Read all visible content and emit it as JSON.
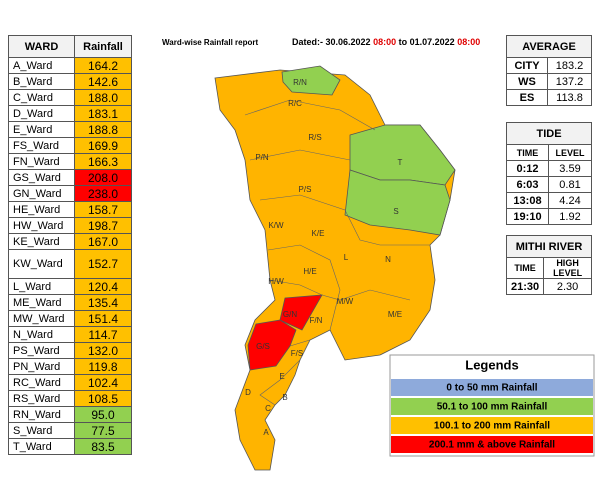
{
  "header": {
    "title": "Ward-wise Rainfall report",
    "dated_label": "Dated:-",
    "date_from": "30.06.2022",
    "time_from": "08:00",
    "to": "to",
    "date_to": "01.07.2022",
    "time_to": "08:00"
  },
  "ward_table": {
    "columns": [
      "WARD",
      "Rainfall"
    ],
    "rows": [
      {
        "ward": "A_Ward",
        "rainfall": "164.2",
        "color": "#ffc000"
      },
      {
        "ward": "B_Ward",
        "rainfall": "142.6",
        "color": "#ffc000"
      },
      {
        "ward": "C_Ward",
        "rainfall": "188.0",
        "color": "#ffc000"
      },
      {
        "ward": "D_Ward",
        "rainfall": "183.1",
        "color": "#ffc000"
      },
      {
        "ward": "E_Ward",
        "rainfall": "188.8",
        "color": "#ffc000"
      },
      {
        "ward": "FS_Ward",
        "rainfall": "169.9",
        "color": "#ffc000"
      },
      {
        "ward": "FN_Ward",
        "rainfall": "166.3",
        "color": "#ffc000"
      },
      {
        "ward": "GS_Ward",
        "rainfall": "208.0",
        "color": "#ff0000"
      },
      {
        "ward": "GN_Ward",
        "rainfall": "238.0",
        "color": "#ff0000"
      },
      {
        "ward": "HE_Ward",
        "rainfall": "158.7",
        "color": "#ffc000"
      },
      {
        "ward": "HW_Ward",
        "rainfall": "198.7",
        "color": "#ffc000"
      },
      {
        "ward": "KE_Ward",
        "rainfall": "167.0",
        "color": "#ffc000"
      },
      {
        "ward": "KW_Ward",
        "rainfall": "152.7",
        "color": "#ffc000"
      },
      {
        "ward": "L_Ward",
        "rainfall": "120.4",
        "color": "#ffc000"
      },
      {
        "ward": "ME_Ward",
        "rainfall": "135.4",
        "color": "#ffc000"
      },
      {
        "ward": "MW_Ward",
        "rainfall": "151.4",
        "color": "#ffc000"
      },
      {
        "ward": "N_Ward",
        "rainfall": "114.7",
        "color": "#ffc000"
      },
      {
        "ward": "PS_Ward",
        "rainfall": "132.0",
        "color": "#ffc000"
      },
      {
        "ward": "PN_Ward",
        "rainfall": "119.8",
        "color": "#ffc000"
      },
      {
        "ward": "RC_Ward",
        "rainfall": "102.4",
        "color": "#ffc000"
      },
      {
        "ward": "RS_Ward",
        "rainfall": "108.5",
        "color": "#ffc000"
      },
      {
        "ward": "RN_Ward",
        "rainfall": "95.0",
        "color": "#92d050"
      },
      {
        "ward": "S_Ward",
        "rainfall": "77.5",
        "color": "#92d050"
      },
      {
        "ward": "T_Ward",
        "rainfall": "83.5",
        "color": "#92d050"
      }
    ]
  },
  "average": {
    "title": "AVERAGE",
    "rows": [
      [
        "CITY",
        "183.2"
      ],
      [
        "WS",
        "137.2"
      ],
      [
        "ES",
        "113.8"
      ]
    ]
  },
  "tide": {
    "title": "TIDE",
    "columns": [
      "TIME",
      "LEVEL"
    ],
    "rows": [
      [
        "0:12",
        "3.59"
      ],
      [
        "6:03",
        "0.81"
      ],
      [
        "13:08",
        "4.24"
      ],
      [
        "19:10",
        "1.92"
      ]
    ]
  },
  "mithi_river": {
    "title": "MITHI RIVER",
    "columns": [
      "TIME",
      "HIGH LEVEL"
    ],
    "rows": [
      [
        "21:30",
        "2.30"
      ]
    ]
  },
  "legend": {
    "title": "Legends",
    "items": [
      {
        "label": "0 to 50 mm  Rainfall",
        "color": "#8eaadb"
      },
      {
        "label": "50.1 to 100 mm  Rainfall",
        "color": "#92d050"
      },
      {
        "label": "100.1 to 200 mm  Rainfall",
        "color": "#ffc000"
      },
      {
        "label": "200.1 mm & above  Rainfall",
        "color": "#ff0000"
      }
    ]
  },
  "map": {
    "labels": [
      "R/N",
      "R/C",
      "R/S",
      "P/N",
      "T",
      "P/S",
      "S",
      "K/W",
      "K/E",
      "L",
      "N",
      "H/E",
      "H/W",
      "M/W",
      "M/E",
      "G/N",
      "F/N",
      "G/S",
      "F/S",
      "E",
      "D",
      "B",
      "C",
      "A"
    ]
  }
}
